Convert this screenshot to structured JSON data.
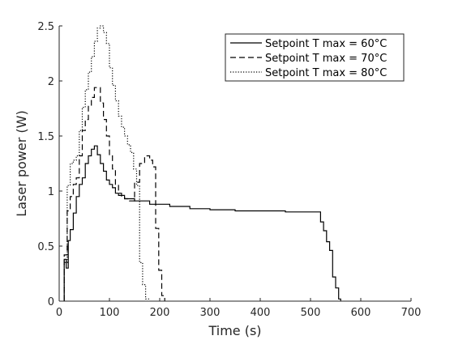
{
  "chart_data": {
    "type": "line",
    "title": "",
    "xlabel": "Time (s)",
    "ylabel": "Laser power (W)",
    "xlim": [
      0,
      700
    ],
    "ylim": [
      0,
      2.5
    ],
    "xticks": [
      0,
      100,
      200,
      300,
      400,
      500,
      600,
      700
    ],
    "yticks": [
      0,
      0.5,
      1,
      1.5,
      2,
      2.5
    ],
    "xtick_labels": [
      "0",
      "100",
      "200",
      "300",
      "400",
      "500",
      "600",
      "700"
    ],
    "ytick_labels": [
      "0",
      "0.5",
      "1",
      "1.5",
      "2",
      "2.5"
    ],
    "grid": false,
    "step": true,
    "legend_position": "top-right",
    "series": [
      {
        "name": "Setpoint T max = 60°C",
        "linestyle": "solid",
        "color": "#000000",
        "x": [
          10,
          14,
          18,
          22,
          28,
          34,
          40,
          46,
          52,
          58,
          64,
          70,
          76,
          82,
          88,
          94,
          100,
          106,
          112,
          118,
          130,
          150,
          180,
          220,
          260,
          300,
          350,
          400,
          450,
          500,
          520,
          526,
          532,
          538,
          544,
          550,
          556,
          560
        ],
        "y": [
          0.38,
          0.3,
          0.55,
          0.65,
          0.8,
          0.95,
          1.06,
          1.12,
          1.25,
          1.32,
          1.38,
          1.41,
          1.33,
          1.25,
          1.18,
          1.1,
          1.06,
          1.03,
          0.98,
          0.96,
          0.93,
          0.91,
          0.88,
          0.86,
          0.84,
          0.83,
          0.82,
          0.82,
          0.81,
          0.81,
          0.72,
          0.64,
          0.54,
          0.46,
          0.22,
          0.12,
          0.02,
          0
        ]
      },
      {
        "name": "Setpoint T max = 70°C",
        "linestyle": "dashed",
        "color": "#000000",
        "x": [
          10,
          16,
          22,
          28,
          34,
          40,
          46,
          52,
          58,
          64,
          70,
          76,
          82,
          88,
          94,
          100,
          106,
          112,
          118,
          124,
          130,
          140,
          150,
          160,
          170,
          180,
          186,
          192,
          198,
          204,
          210
        ],
        "y": [
          0.42,
          0.82,
          0.95,
          1.06,
          1.12,
          1.32,
          1.55,
          1.65,
          1.78,
          1.85,
          1.94,
          1.94,
          1.8,
          1.65,
          1.5,
          1.32,
          1.2,
          1.06,
          0.98,
          0.95,
          0.93,
          0.91,
          1.08,
          1.25,
          1.32,
          1.28,
          1.22,
          0.66,
          0.28,
          0.05,
          0
        ]
      },
      {
        "name": "Setpoint T max = 80°C",
        "linestyle": "dotted",
        "color": "#000000",
        "x": [
          10,
          16,
          22,
          28,
          34,
          40,
          46,
          52,
          58,
          64,
          70,
          76,
          82,
          88,
          94,
          100,
          106,
          112,
          118,
          124,
          130,
          136,
          142,
          148,
          154,
          160,
          166,
          172,
          178
        ],
        "y": [
          0.35,
          1.05,
          1.25,
          1.28,
          1.32,
          1.55,
          1.76,
          1.92,
          2.08,
          2.22,
          2.36,
          2.48,
          2.5,
          2.44,
          2.34,
          2.12,
          1.96,
          1.82,
          1.68,
          1.58,
          1.5,
          1.42,
          1.35,
          1.2,
          1.05,
          0.35,
          0.15,
          0.02,
          0
        ]
      }
    ]
  }
}
